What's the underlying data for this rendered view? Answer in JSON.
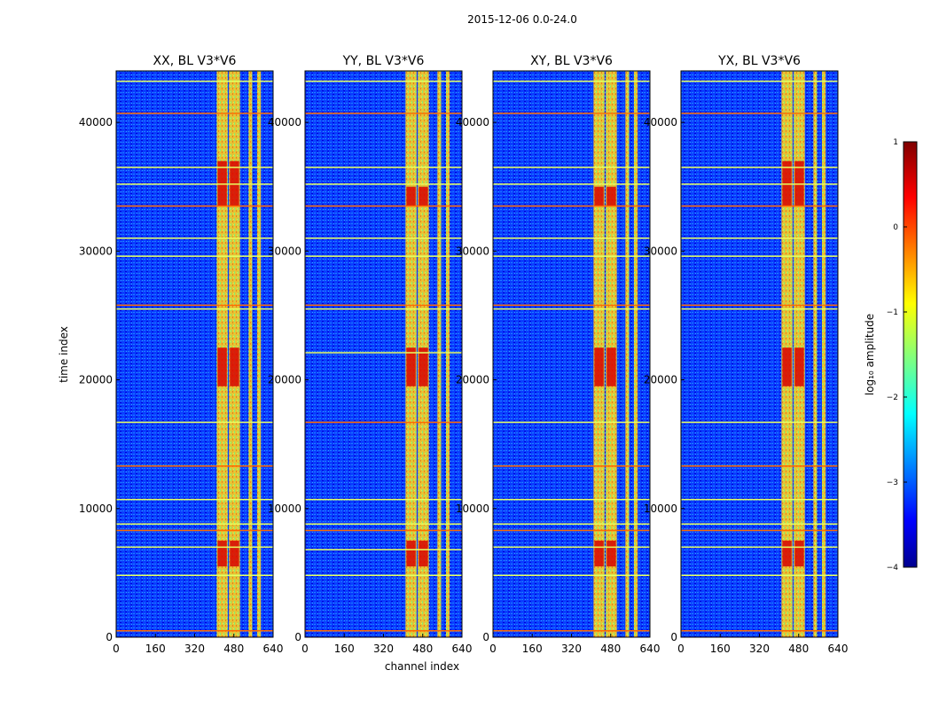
{
  "figure": {
    "suptitle": "2015-12-06 0.0-24.0",
    "ylabel": "time index",
    "xlabel": "channel index"
  },
  "colorbar": {
    "label": "log₁₀ amplitude",
    "range": [
      -4,
      1
    ],
    "ticks": [
      "1",
      "0",
      "−1",
      "−2",
      "−3",
      "−4"
    ],
    "tick_values": [
      1,
      0,
      -1,
      -2,
      -3,
      -4
    ],
    "colormap": "jet"
  },
  "colors": {
    "background": "#ffffff",
    "low": "#0000b0",
    "mid": "#00c8ff",
    "high": "#800000"
  },
  "chart_data": [
    {
      "type": "heatmap",
      "title": "XX, BL V3*V6",
      "xlabel": "channel index",
      "ylabel": "time index",
      "xlim": [
        0,
        640
      ],
      "ylim": [
        0,
        44000
      ],
      "xticks": [
        "0",
        "160",
        "320",
        "480",
        "640"
      ],
      "yticks": [
        "0",
        "10000",
        "20000",
        "30000",
        "40000"
      ],
      "bright_channel_bands": [
        [
          410,
          455
        ],
        [
          460,
          505
        ],
        [
          540,
          555
        ],
        [
          575,
          590
        ]
      ],
      "strong_time_ranges": [
        [
          5500,
          7500
        ],
        [
          19500,
          22500
        ],
        [
          33500,
          37000
        ]
      ],
      "rfi_time_rows": [
        500,
        4800,
        7000,
        8300,
        8800,
        10700,
        13300,
        16700,
        25500,
        25800,
        29600,
        31000,
        33500,
        35200,
        36500,
        40700,
        43200
      ]
    },
    {
      "type": "heatmap",
      "title": "YY, BL V3*V6",
      "xlabel": "channel index",
      "ylabel": "time index",
      "xlim": [
        0,
        640
      ],
      "ylim": [
        0,
        44000
      ],
      "xticks": [
        "0",
        "160",
        "320",
        "480",
        "640"
      ],
      "yticks": [
        "0",
        "10000",
        "20000",
        "30000",
        "40000"
      ],
      "bright_channel_bands": [
        [
          410,
          455
        ],
        [
          460,
          505
        ],
        [
          540,
          555
        ],
        [
          575,
          590
        ]
      ],
      "strong_time_ranges": [
        [
          5500,
          7500
        ],
        [
          19500,
          22500
        ],
        [
          33500,
          35000
        ]
      ],
      "rfi_time_rows": [
        500,
        4800,
        6800,
        8300,
        8800,
        10700,
        16700,
        22100,
        25500,
        25800,
        29600,
        31000,
        33500,
        35200,
        36500,
        40700,
        43200
      ]
    },
    {
      "type": "heatmap",
      "title": "XY, BL V3*V6",
      "xlabel": "channel index",
      "ylabel": "time index",
      "xlim": [
        0,
        640
      ],
      "ylim": [
        0,
        44000
      ],
      "xticks": [
        "0",
        "160",
        "320",
        "480",
        "640"
      ],
      "yticks": [
        "0",
        "10000",
        "20000",
        "30000",
        "40000"
      ],
      "bright_channel_bands": [
        [
          410,
          455
        ],
        [
          460,
          505
        ],
        [
          540,
          555
        ],
        [
          575,
          590
        ]
      ],
      "strong_time_ranges": [
        [
          5500,
          7500
        ],
        [
          19500,
          22500
        ],
        [
          33500,
          35000
        ]
      ],
      "rfi_time_rows": [
        500,
        4800,
        7000,
        8300,
        8800,
        10700,
        13300,
        16700,
        25500,
        25800,
        29600,
        31000,
        33500,
        35200,
        36500,
        40700,
        43200
      ]
    },
    {
      "type": "heatmap",
      "title": "YX, BL V3*V6",
      "xlabel": "channel index",
      "ylabel": "time index",
      "xlim": [
        0,
        640
      ],
      "ylim": [
        0,
        44000
      ],
      "xticks": [
        "0",
        "160",
        "320",
        "480",
        "640"
      ],
      "yticks": [
        "0",
        "10000",
        "20000",
        "30000",
        "40000"
      ],
      "bright_channel_bands": [
        [
          410,
          455
        ],
        [
          460,
          505
        ],
        [
          540,
          555
        ],
        [
          575,
          590
        ]
      ],
      "strong_time_ranges": [
        [
          5500,
          7500
        ],
        [
          19500,
          22500
        ],
        [
          33500,
          37000
        ]
      ],
      "rfi_time_rows": [
        500,
        4800,
        7000,
        8300,
        8800,
        10700,
        13300,
        16700,
        25500,
        25800,
        29600,
        31000,
        33500,
        35200,
        36500,
        40700,
        43200
      ]
    }
  ]
}
